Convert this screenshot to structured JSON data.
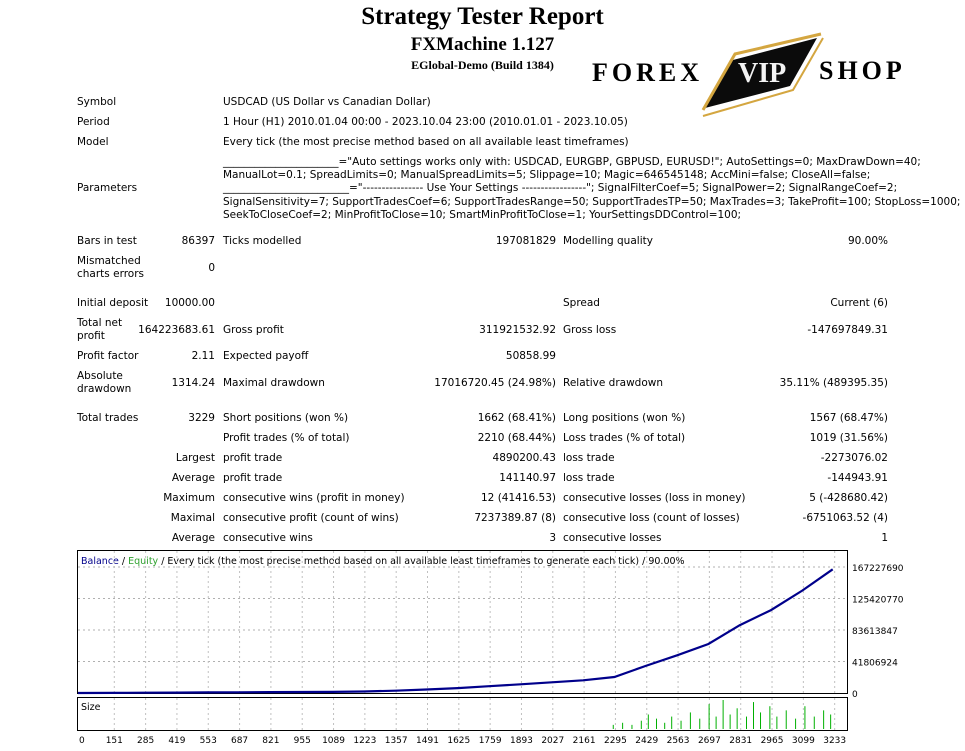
{
  "header": {
    "title": "Strategy Tester Report",
    "subtitle": "FXMachine 1.127",
    "server": "EGlobal-Demo (Build 1384)"
  },
  "logo": {
    "left": "FOREX",
    "middle": "VIP",
    "right": "SHOP"
  },
  "info": {
    "symbol_label": "Symbol",
    "symbol_value": "USDCAD (US Dollar vs Canadian Dollar)",
    "period_label": "Period",
    "period_value": "1 Hour (H1) 2010.01.04 00:00 - 2023.10.04 23:00 (2010.01.01 - 2023.10.05)",
    "model_label": "Model",
    "model_value": "Every tick (the most precise method based on all available least timeframes)",
    "parameters_label": "Parameters",
    "parameters_lines": [
      "______________________=\"Auto settings works only with: USDCAD, EURGBP, GBPUSD, EURUSD!\"; AutoSettings=0; MaxDrawDown=40;",
      "ManualLot=0.1; SpreadLimits=0; ManualSpreadLimits=5; Slippage=10; Magic=646545148; AccMini=false; CloseAll=false;",
      "________________________=\"---------------- Use Your Settings -----------------\"; SignalFilterCoef=5; SignalPower=2; SignalRangeCoef=2;",
      "SignalSensitivity=7; SupportTradesCoef=6; SupportTradesRange=50; SupportTradesTP=50; MaxTrades=3; TakeProfit=100; StopLoss=1000;",
      "SeekToCloseCoef=2; MinProfitToClose=10; SmartMinProfitToClose=1; YourSettingsDDControl=100;"
    ]
  },
  "stats": {
    "bars_label": "Bars in test",
    "bars_value": "86397",
    "ticks_label": "Ticks modelled",
    "ticks_value": "197081829",
    "quality_label": "Modelling quality",
    "quality_value": "90.00%",
    "mismatch_label_1": "Mismatched",
    "mismatch_label_2": "charts errors",
    "mismatch_value": "0",
    "deposit_label": "Initial deposit",
    "deposit_value": "10000.00",
    "spread_label": "Spread",
    "spread_value": "Current (6)",
    "net_label_1": "Total net",
    "net_label_2": "profit",
    "net_value": "164223683.61",
    "gross_profit_label": "Gross profit",
    "gross_profit_value": "311921532.92",
    "gross_loss_label": "Gross loss",
    "gross_loss_value": "-147697849.31",
    "pf_label": "Profit factor",
    "pf_value": "2.11",
    "payoff_label": "Expected payoff",
    "payoff_value": "50858.99",
    "abs_dd_label_1": "Absolute",
    "abs_dd_label_2": "drawdown",
    "abs_dd_value": "1314.24",
    "max_dd_label": "Maximal drawdown",
    "max_dd_value": "17016720.45 (24.98%)",
    "rel_dd_label": "Relative drawdown",
    "rel_dd_value": "35.11% (489395.35)",
    "trades_label": "Total trades",
    "trades_value": "3229",
    "short_label": "Short positions (won %)",
    "short_value": "1662 (68.41%)",
    "long_label": "Long positions (won %)",
    "long_value": "1567 (68.47%)",
    "profit_trades_label": "Profit trades (% of total)",
    "profit_trades_value": "2210 (68.44%)",
    "loss_trades_label": "Loss trades (% of total)",
    "loss_trades_value": "1019 (31.56%)",
    "largest_label": "Largest",
    "largest_profit_label": "profit trade",
    "largest_profit_value": "4890200.43",
    "largest_loss_label": "loss trade",
    "largest_loss_value": "-2273076.02",
    "average_label": "Average",
    "average_profit_label": "profit trade",
    "average_profit_value": "141140.97",
    "average_loss_label": "loss trade",
    "average_loss_value": "-144943.91",
    "maximum_label": "Maximum",
    "max_wins_label": "consecutive wins (profit in money)",
    "max_wins_value": "12 (41416.53)",
    "max_losses_label": "consecutive losses (loss in money)",
    "max_losses_value": "5 (-428680.42)",
    "maximal_label": "Maximal",
    "max_profit_label": "consecutive profit (count of wins)",
    "max_profit_value": "7237389.87 (8)",
    "max_loss_label": "consecutive loss (count of losses)",
    "max_loss_value": "-6751063.52 (4)",
    "avg_label": "Average",
    "avg_wins_label": "consecutive wins",
    "avg_wins_value": "3",
    "avg_losses_label": "consecutive losses",
    "avg_losses_value": "1"
  },
  "chart_legend": {
    "balance": "Balance",
    "sep1": " / ",
    "equity": "Equity",
    "rest": " / Every tick (the most precise method based on all available least timeframes to generate each tick) / 90.00%",
    "size": "Size",
    "balance_color": "#00008b",
    "equity_color": "#2ea12e",
    "size_color": "#00b000"
  },
  "chart_data": {
    "type": "line",
    "ylim": [
      0,
      167227690
    ],
    "y_ticks": [
      "0",
      "41806924",
      "83613847",
      "125420770",
      "167227690"
    ],
    "x_ticks": [
      "0",
      "151",
      "285",
      "419",
      "553",
      "687",
      "821",
      "955",
      "1089",
      "1223",
      "1357",
      "1491",
      "1625",
      "1759",
      "1893",
      "2027",
      "2161",
      "2295",
      "2429",
      "2563",
      "2697",
      "2831",
      "2965",
      "3099",
      "3233"
    ],
    "series": [
      {
        "name": "Balance",
        "x": [
          0,
          151,
          285,
          419,
          553,
          687,
          821,
          955,
          1089,
          1223,
          1357,
          1491,
          1625,
          1759,
          1893,
          2027,
          2161,
          2295,
          2429,
          2563,
          2697,
          2831,
          2965,
          3099,
          3229
        ],
        "y": [
          10000,
          150000,
          350000,
          550000,
          750000,
          950000,
          1150000,
          1300000,
          1500000,
          2000000,
          3000000,
          4700000,
          6500000,
          9000000,
          11500000,
          14200000,
          16800000,
          21200000,
          36000000,
          50000000,
          65000000,
          90000000,
          110000000,
          136000000,
          164233683
        ]
      }
    ],
    "size_bars": [
      {
        "x": 2290,
        "v": 2
      },
      {
        "x": 2330,
        "v": 3
      },
      {
        "x": 2370,
        "v": 2
      },
      {
        "x": 2410,
        "v": 4
      },
      {
        "x": 2440,
        "v": 7
      },
      {
        "x": 2475,
        "v": 5
      },
      {
        "x": 2510,
        "v": 3
      },
      {
        "x": 2540,
        "v": 6
      },
      {
        "x": 2580,
        "v": 4
      },
      {
        "x": 2620,
        "v": 8
      },
      {
        "x": 2660,
        "v": 5
      },
      {
        "x": 2700,
        "v": 12
      },
      {
        "x": 2730,
        "v": 6
      },
      {
        "x": 2760,
        "v": 14
      },
      {
        "x": 2790,
        "v": 7
      },
      {
        "x": 2820,
        "v": 10
      },
      {
        "x": 2860,
        "v": 6
      },
      {
        "x": 2890,
        "v": 13
      },
      {
        "x": 2920,
        "v": 8
      },
      {
        "x": 2960,
        "v": 11
      },
      {
        "x": 2990,
        "v": 6
      },
      {
        "x": 3030,
        "v": 9
      },
      {
        "x": 3070,
        "v": 5
      },
      {
        "x": 3110,
        "v": 11
      },
      {
        "x": 3150,
        "v": 6
      },
      {
        "x": 3190,
        "v": 9
      },
      {
        "x": 3220,
        "v": 7
      }
    ]
  }
}
